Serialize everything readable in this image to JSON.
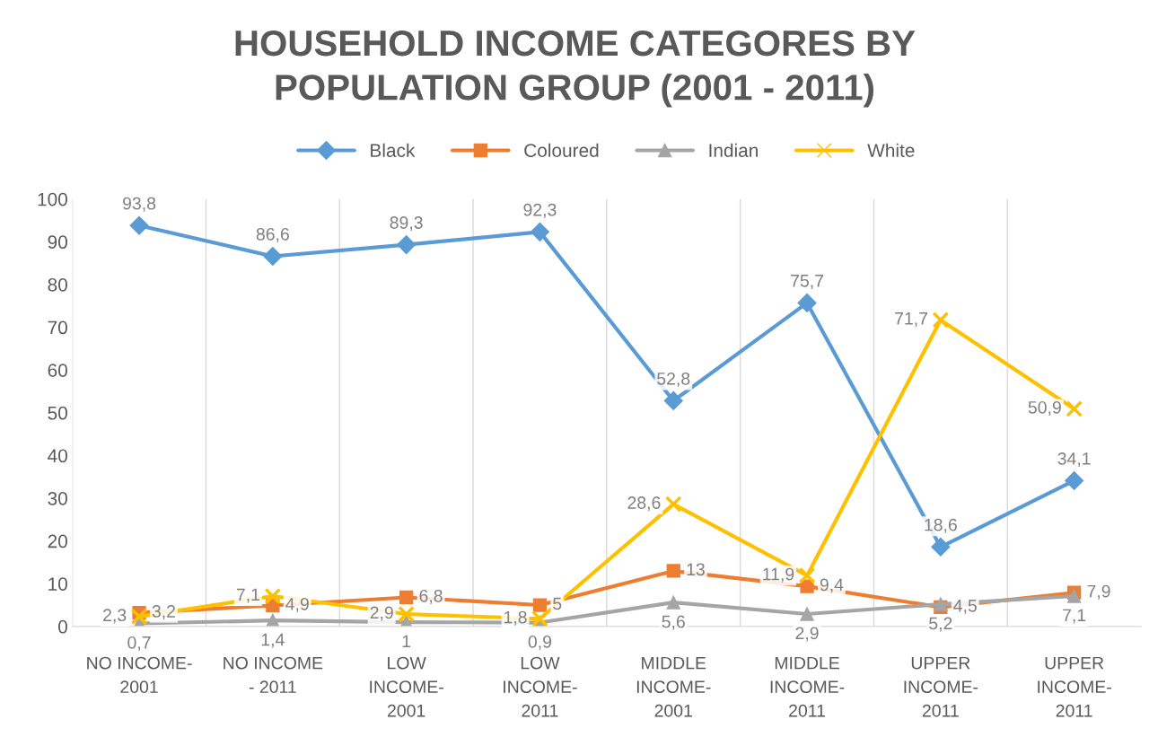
{
  "chart_data": {
    "type": "line",
    "title": "HOUSEHOLD INCOME CATEGORES BY POPULATION GROUP (2001 - 2011)",
    "categories": [
      "NO INCOME-2001",
      "NO INCOME - 2011",
      "LOW INCOME-2001",
      "LOW INCOME-2011",
      "MIDDLE INCOME-2001",
      "MIDDLE INCOME-2011",
      "UPPER INCOME-2011",
      "UPPER INCOME-2011"
    ],
    "series": [
      {
        "name": "Black",
        "color": "#5b9bd5",
        "marker": "diamond",
        "values": [
          93.8,
          86.6,
          89.3,
          92.3,
          52.8,
          75.7,
          18.6,
          34.1
        ],
        "value_labels": [
          "93,8",
          "86,6",
          "89,3",
          "92,3",
          "52,8",
          "75,7",
          "18,6",
          "34,1"
        ]
      },
      {
        "name": "Coloured",
        "color": "#ed7d31",
        "marker": "square",
        "values": [
          3.2,
          4.9,
          6.8,
          5,
          13,
          9.4,
          4.5,
          7.9
        ],
        "value_labels": [
          "3,2",
          "4,9",
          "6,8",
          "5",
          "13",
          "9,4",
          "4,5",
          "7,9"
        ]
      },
      {
        "name": "Indian",
        "color": "#a5a5a5",
        "marker": "triangle",
        "values": [
          0.7,
          1.4,
          1,
          0.9,
          5.6,
          2.9,
          5.2,
          7.1
        ],
        "value_labels": [
          "0,7",
          "1,4",
          "1",
          "0,9",
          "5,6",
          "2,9",
          "5,2",
          "7,1"
        ]
      },
      {
        "name": "White",
        "color": "#ffc000",
        "marker": "cross",
        "values": [
          2.3,
          7.1,
          2.9,
          1.8,
          28.6,
          11.9,
          71.7,
          50.9
        ],
        "value_labels": [
          "2,3",
          "7,1",
          "2,9",
          "1,8",
          "28,6",
          "11,9",
          "71,7",
          "50,9"
        ]
      }
    ],
    "ylim": [
      0,
      100
    ],
    "yticks": [
      0,
      10,
      20,
      30,
      40,
      50,
      60,
      70,
      80,
      90,
      100
    ],
    "grid": "x",
    "legend": "top",
    "line_style": "solid"
  }
}
